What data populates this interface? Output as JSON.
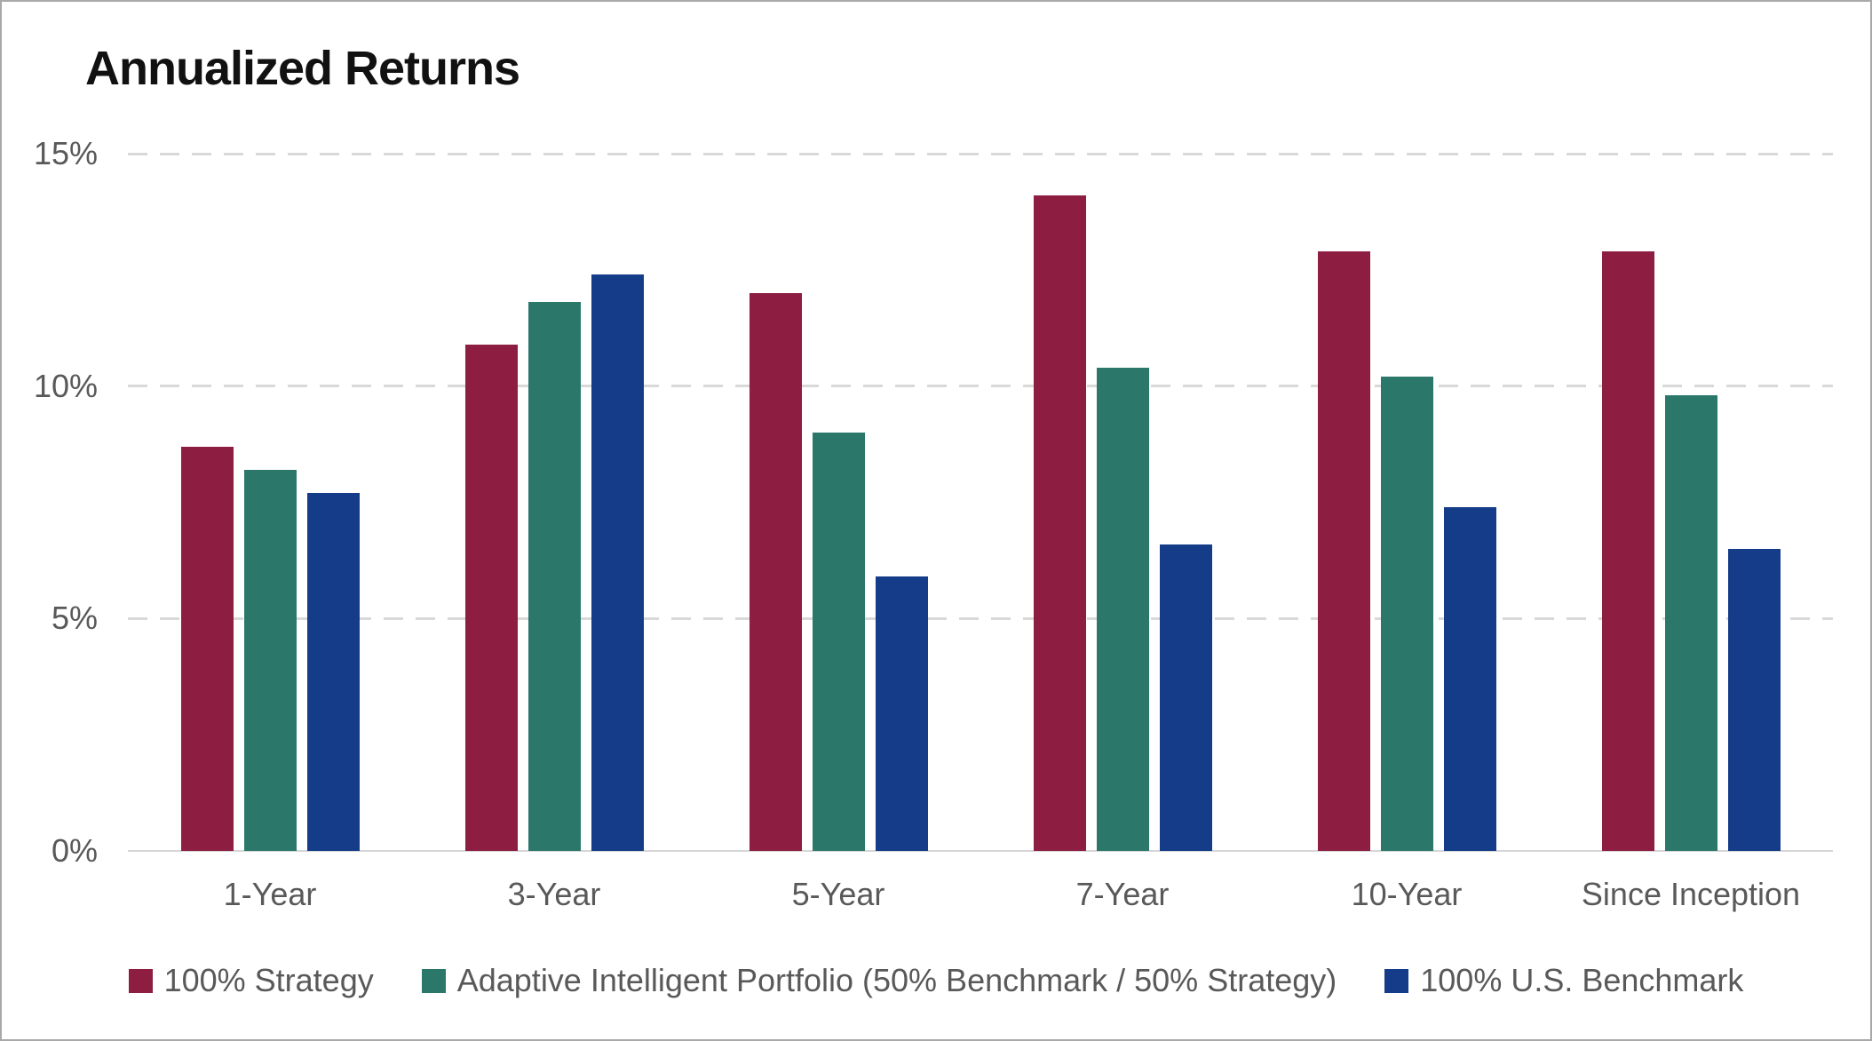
{
  "chart_data": {
    "type": "bar",
    "title": "Annualized Returns",
    "categories": [
      "1-Year",
      "3-Year",
      "5-Year",
      "7-Year",
      "10-Year",
      "Since Inception"
    ],
    "series": [
      {
        "name": "100% Strategy",
        "color": "#8E1D42",
        "values": [
          8.7,
          10.9,
          12.0,
          14.1,
          12.9,
          12.9
        ]
      },
      {
        "name": "Adaptive Intelligent Portfolio (50% Benchmark / 50% Strategy)",
        "color": "#2B786B",
        "values": [
          8.2,
          11.8,
          9.0,
          10.4,
          10.2,
          9.8
        ]
      },
      {
        "name": "100% U.S. Benchmark",
        "color": "#143C88",
        "values": [
          7.7,
          12.4,
          5.9,
          6.6,
          7.4,
          6.5
        ]
      }
    ],
    "xlabel": "",
    "ylabel": "",
    "ylim": [
      0,
      15
    ],
    "y_ticks": [
      "15%",
      "10%",
      "5%",
      "0%"
    ],
    "grid": "horizontal-dashed",
    "legend_position": "bottom",
    "colors": {
      "text_gray": "#595959",
      "gridline": "#D9D9D9",
      "title": "#111111",
      "frame_border": "#A9A9A9"
    }
  }
}
